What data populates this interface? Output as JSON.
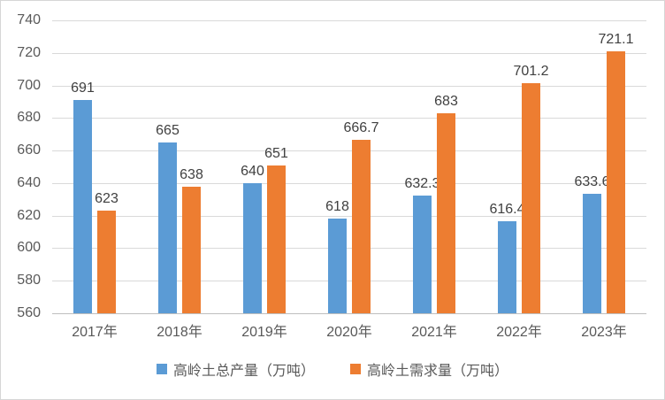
{
  "chart_data": {
    "type": "bar",
    "title": "",
    "xlabel": "",
    "ylabel": "",
    "categories": [
      "2017年",
      "2018年",
      "2019年",
      "2020年",
      "2021年",
      "2022年",
      "2023年"
    ],
    "series": [
      {
        "name": "高岭土总产量（万吨）",
        "color": "#5b9bd5",
        "values": [
          691,
          665,
          640,
          618,
          632.3,
          616.4,
          633.6
        ]
      },
      {
        "name": "高岭土需求量（万吨）",
        "color": "#ed7d31",
        "values": [
          623,
          638,
          651,
          666.7,
          683,
          701.2,
          721.1
        ]
      }
    ],
    "ylim": [
      560,
      740
    ],
    "yticks": [
      560,
      580,
      600,
      620,
      640,
      660,
      680,
      700,
      720,
      740
    ],
    "grid": true,
    "data_labels": true,
    "legend_position": "bottom"
  },
  "style": {
    "background": "#ffffff",
    "border": "#d6d6d6",
    "gridline": "#d9d9d9",
    "axis_line": "#bfbfbf",
    "tick_label_color": "#595959",
    "data_label_color": "#404040",
    "series1_color": "#5b9bd5",
    "series2_color": "#ed7d31"
  }
}
